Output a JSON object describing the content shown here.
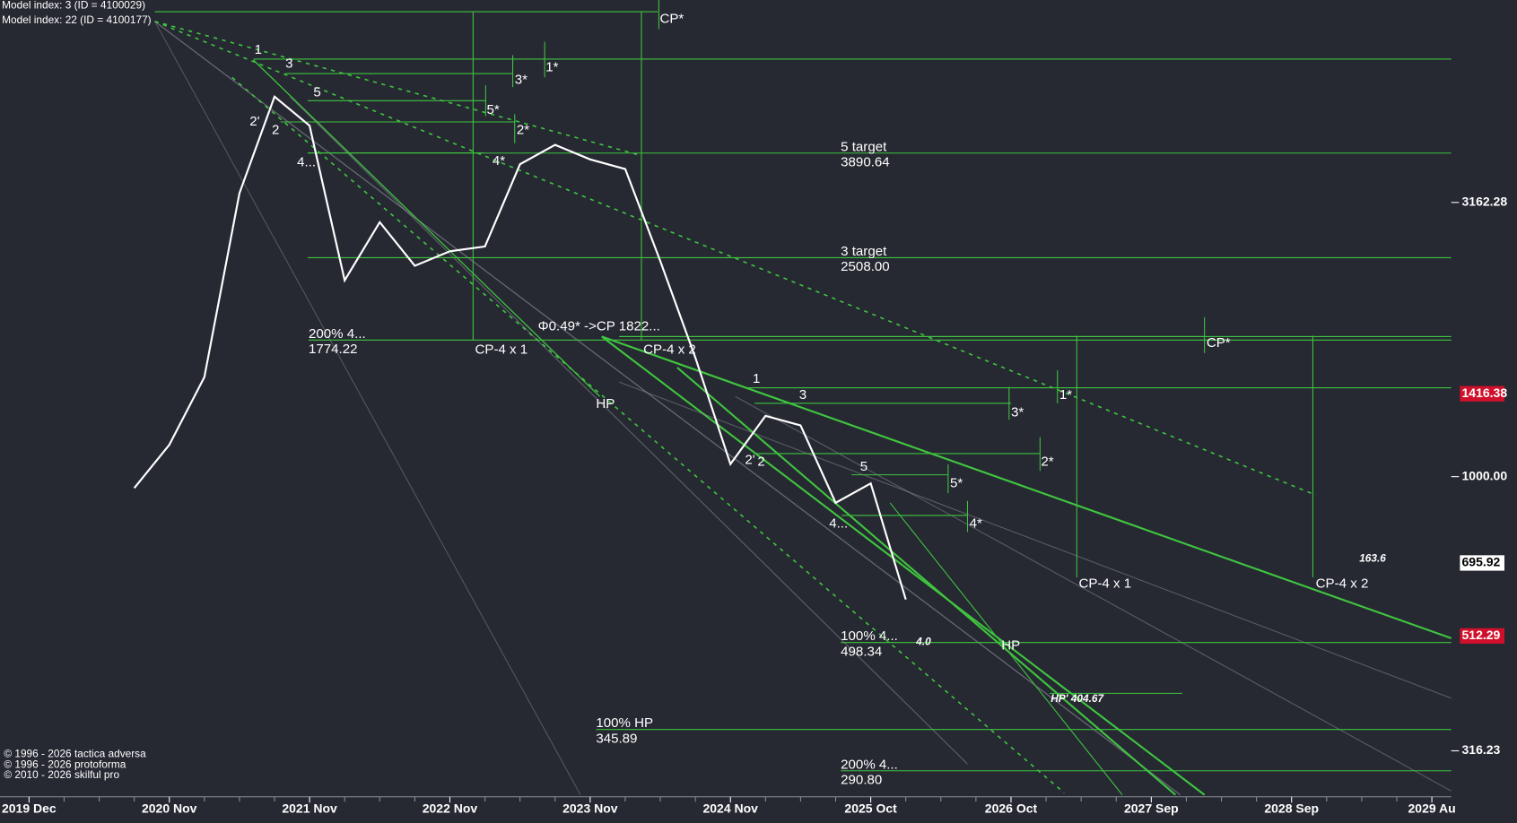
{
  "chart_data": {
    "type": "line",
    "header": [
      "Model index: 3  (ID = 4100029)",
      "Model index: 22  (ID = 4100177)"
    ],
    "footer": [
      "© 1996 - 2026 tactica adversa",
      "© 1996 - 2026 protoforma",
      "© 2010 - 2026 skilful pro"
    ],
    "categories": [
      "2019 Dec",
      null,
      null,
      null,
      "2020 Nov",
      null,
      null,
      null,
      "2021 Nov",
      null,
      null,
      null,
      "2022 Nov",
      null,
      null,
      null,
      "2023 Nov",
      null,
      null,
      null,
      "2024 Nov",
      null,
      null,
      null,
      "2025 Oct",
      null,
      null,
      null,
      "2026 Oct",
      null,
      null,
      null,
      "2027 Sep",
      null,
      null,
      null,
      "2028 Sep",
      null,
      null,
      null,
      "2029 Au"
    ],
    "series": [
      {
        "color": "#ffffff",
        "values": [
          null,
          null,
          null,
          953,
          1143,
          1519,
          3287,
          4932,
          4365,
          2280,
          2911,
          2424,
          2576,
          2629,
          3713,
          4027,
          3789,
          3639,
          2472,
          1648,
          1054,
          1291,
          1240,
          896,
          972,
          597,
          null,
          null,
          null,
          null,
          null,
          null,
          null,
          null,
          null,
          null,
          null,
          null,
          null,
          null,
          null
        ]
      }
    ],
    "log_scale": true,
    "ylim": [
      265,
      7396
    ],
    "yticks": [
      316.23,
      {
        "value": 1000,
        "label": "1000.00"
      },
      3162.28
    ],
    "price_labels": [
      {
        "value": 1416.38,
        "background": "#d0102a",
        "text_color": "#ffffff"
      },
      {
        "value": 695.92,
        "background": "#ffffff",
        "text_color": "#000000"
      },
      {
        "value": 512.29,
        "background": "#d0102a",
        "text_color": "#ffffff"
      }
    ],
    "levels": [
      {
        "name": "5 target",
        "value": 3890.64,
        "value_label": "3890.64"
      },
      {
        "name": "3 target",
        "value": 2508,
        "value_label": "2508.00"
      },
      {
        "name": "200%  4...",
        "value": 1774.22
      },
      {
        "name": "100%  4...",
        "value": 498.34
      },
      {
        "name": "100% HP",
        "value": 345.89
      },
      {
        "name": "200%  4...",
        "value": 290.8,
        "value_label": "290.80"
      }
    ],
    "level_color": "#3fc43f",
    "wave_labels": [
      "1",
      "3",
      "5",
      "2'",
      "2",
      "4...",
      "3*",
      "1*",
      "5*",
      "2*",
      "4*",
      "CP*",
      "Φ0.49* ->CP  1822...",
      "CP-4 x 1",
      "CP-4 x 2",
      "HP",
      "1",
      "3",
      "2'",
      "2",
      "5",
      "4...",
      "CP*",
      "1*",
      "3*",
      "2*",
      "5*",
      "4*",
      "CP-4 x 1",
      "CP-4 x 2",
      "HP",
      "HP' 404.67",
      "163.6",
      "4.0"
    ]
  }
}
